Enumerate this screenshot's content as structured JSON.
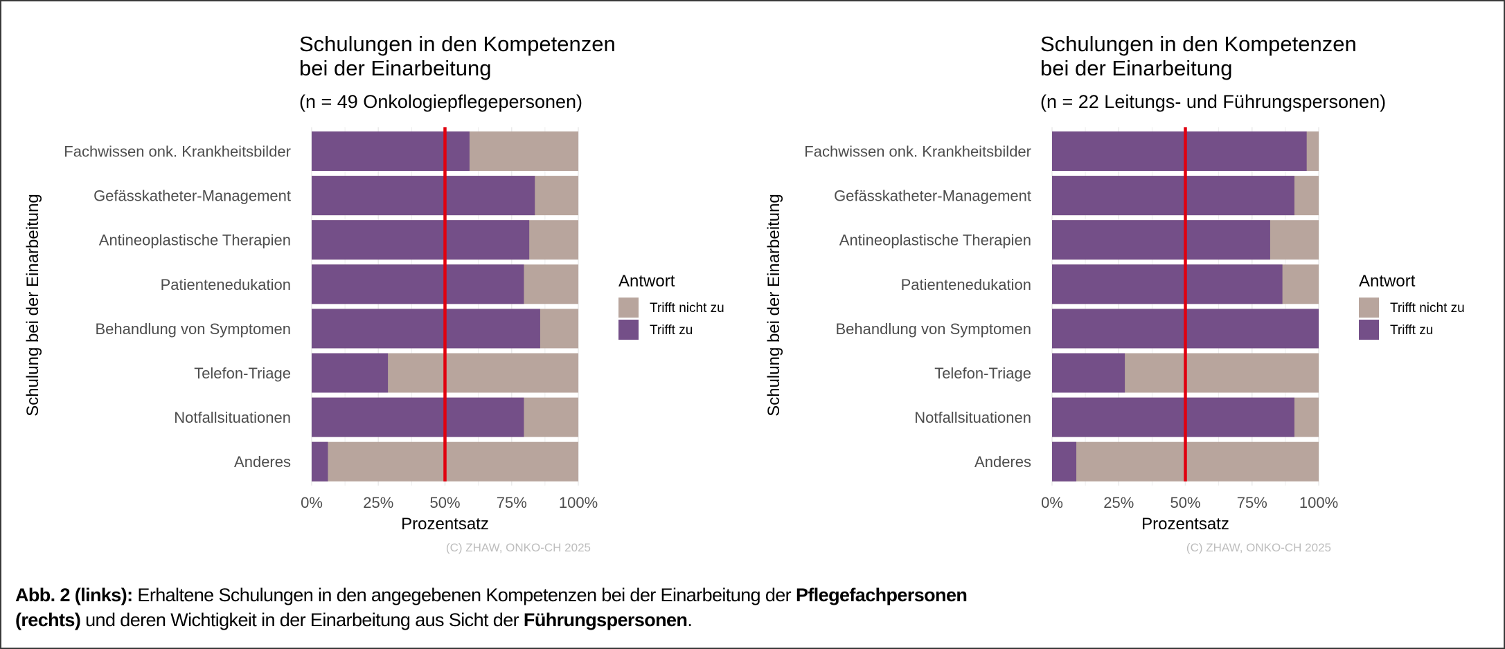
{
  "figure": {
    "caption": {
      "line1_bold": "Abb. 2 (links):",
      "line1_text": " Erhaltene Schulungen in den angegebenen Kompetenzen bei der Einarbeitung der ",
      "line1_bold_end": "Pflegefachpersonen",
      "line2_bold": "(rechts)",
      "line2_text": " und deren Wichtigkeit in der Einarbeitung aus Sicht der ",
      "line2_bold_end": "Führungspersonen",
      "line2_end": "."
    }
  },
  "colors": {
    "trifft_zu": "#744f88",
    "trifft_nicht_zu": "#b8a59d",
    "reference_line": "#e0000f",
    "gridline": "#ebebeb"
  },
  "chart_data": [
    {
      "type": "bar",
      "orientation": "horizontal",
      "stacked": "percent",
      "title": "Schulungen in den Kompetenzen\nbei der Einarbeitung",
      "title_lines": [
        "Schulungen in den Kompetenzen",
        "bei der Einarbeitung"
      ],
      "subtitle": "(n = 49 Onkologiepflegepersonen)",
      "n": 49,
      "xlabel": "Prozentsatz",
      "ylabel": "Schulung bei der Einarbeitung",
      "xlim": [
        0,
        100
      ],
      "xticks": [
        "0%",
        "25%",
        "50%",
        "75%",
        "100%"
      ],
      "reference_line": 50,
      "grid": true,
      "legend": {
        "title": "Antwort",
        "position": "right",
        "entries": [
          "Trifft nicht zu",
          "Trifft zu"
        ]
      },
      "categories": [
        "Fachwissen onk. Krankheitsbilder",
        "Gefässkatheter-Management",
        "Antineoplastische Therapien",
        "Patientenedukation",
        "Behandlung von Symptomen",
        "Telefon-Triage",
        "Notfallsituationen",
        "Anderes"
      ],
      "series": [
        {
          "name": "Trifft zu",
          "values": [
            59.2,
            83.7,
            81.6,
            79.6,
            85.7,
            28.6,
            79.6,
            6.1
          ]
        },
        {
          "name": "Trifft nicht zu",
          "values": [
            40.8,
            16.3,
            18.4,
            20.4,
            14.3,
            71.4,
            20.4,
            93.9
          ]
        }
      ],
      "copyright": "(C) ZHAW, ONKO-CH 2025"
    },
    {
      "type": "bar",
      "orientation": "horizontal",
      "stacked": "percent",
      "title": "Schulungen in den Kompetenzen\nbei der Einarbeitung",
      "title_lines": [
        "Schulungen in den Kompetenzen",
        "bei der Einarbeitung"
      ],
      "subtitle": "(n = 22 Leitungs- und Führungspersonen)",
      "n": 22,
      "xlabel": "Prozentsatz",
      "ylabel": "Schulung bei der Einarbeitung",
      "xlim": [
        0,
        100
      ],
      "xticks": [
        "0%",
        "25%",
        "50%",
        "75%",
        "100%"
      ],
      "reference_line": 50,
      "grid": true,
      "legend": {
        "title": "Antwort",
        "position": "right",
        "entries": [
          "Trifft nicht zu",
          "Trifft zu"
        ]
      },
      "categories": [
        "Fachwissen onk. Krankheitsbilder",
        "Gefässkatheter-Management",
        "Antineoplastische Therapien",
        "Patientenedukation",
        "Behandlung von Symptomen",
        "Telefon-Triage",
        "Notfallsituationen",
        "Anderes"
      ],
      "series": [
        {
          "name": "Trifft zu",
          "values": [
            95.5,
            90.9,
            81.8,
            86.4,
            100.0,
            27.3,
            90.9,
            9.1
          ]
        },
        {
          "name": "Trifft nicht zu",
          "values": [
            4.5,
            9.1,
            18.2,
            13.6,
            0.0,
            72.7,
            9.1,
            90.9
          ]
        }
      ],
      "copyright": "(C) ZHAW, ONKO-CH 2025"
    }
  ]
}
